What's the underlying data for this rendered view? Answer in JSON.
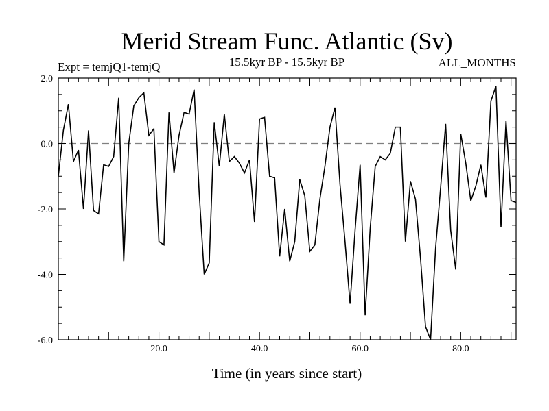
{
  "chart_data": {
    "type": "line",
    "title": "Merid Stream Func. Atlantic (Sv)",
    "subtitle_left": "Expt = temjQ1-temjQ",
    "subtitle_center": "15.5kyr BP - 15.5kyr BP",
    "subtitle_right": "ALL_MONTHS",
    "xlabel": "Time (in years since start)",
    "ylabel": "",
    "xlim": [
      0,
      91
    ],
    "ylim": [
      -6.0,
      2.0
    ],
    "x_ticks": [
      20.0,
      40.0,
      60.0,
      80.0
    ],
    "x_tick_labels": [
      "20.0",
      "40.0",
      "60.0",
      "80.0"
    ],
    "y_ticks": [
      2.0,
      0.0,
      -2.0,
      -4.0,
      -6.0
    ],
    "y_tick_labels": [
      "2.0",
      "0.0",
      "-2.0",
      "-4.0",
      "-6.0"
    ],
    "reference_line": {
      "y": 0.0,
      "style": "dashed",
      "color": "#808080"
    },
    "line_color": "#000000",
    "series": [
      {
        "name": "Merid Stream Func. Atlantic",
        "x": [
          0,
          1,
          2,
          3,
          4,
          5,
          6,
          7,
          8,
          9,
          10,
          11,
          12,
          13,
          14,
          15,
          16,
          17,
          18,
          19,
          20,
          21,
          22,
          23,
          24,
          25,
          26,
          27,
          28,
          29,
          30,
          31,
          32,
          33,
          34,
          35,
          36,
          37,
          38,
          39,
          40,
          41,
          42,
          43,
          44,
          45,
          46,
          47,
          48,
          49,
          50,
          51,
          52,
          53,
          54,
          55,
          56,
          57,
          58,
          59,
          60,
          61,
          62,
          63,
          64,
          65,
          66,
          67,
          68,
          69,
          70,
          71,
          72,
          73,
          74,
          75,
          76,
          77,
          78,
          79,
          80,
          81,
          82,
          83,
          84,
          85,
          86,
          87,
          88,
          89,
          90,
          91
        ],
        "values": [
          -1.0,
          0.4,
          1.2,
          -0.55,
          -0.2,
          -2.0,
          0.4,
          -2.05,
          -2.15,
          -0.65,
          -0.7,
          -0.4,
          1.4,
          -3.6,
          0.0,
          1.15,
          1.4,
          1.55,
          0.25,
          0.45,
          -3.0,
          -3.1,
          0.95,
          -0.9,
          0.25,
          0.95,
          0.9,
          1.65,
          -1.5,
          -4.0,
          -3.65,
          0.65,
          -0.7,
          0.9,
          -0.55,
          -0.4,
          -0.6,
          -0.9,
          -0.5,
          -2.4,
          0.75,
          0.8,
          -1.0,
          -1.05,
          -3.45,
          -2.0,
          -3.6,
          -3.0,
          -1.1,
          -1.6,
          -3.3,
          -3.1,
          -1.7,
          -0.7,
          0.5,
          1.1,
          -1.25,
          -3.0,
          -4.9,
          -2.65,
          -0.65,
          -5.25,
          -2.6,
          -0.7,
          -0.4,
          -0.5,
          -0.3,
          0.5,
          0.5,
          -3.0,
          -1.15,
          -1.7,
          -3.5,
          -5.6,
          -6.0,
          -3.2,
          -1.35,
          0.6,
          -2.65,
          -3.85,
          0.3,
          -0.6,
          -1.75,
          -1.3,
          -0.65,
          -1.65,
          1.3,
          1.75,
          -2.55,
          0.7,
          -1.75,
          -1.8
        ]
      }
    ]
  }
}
